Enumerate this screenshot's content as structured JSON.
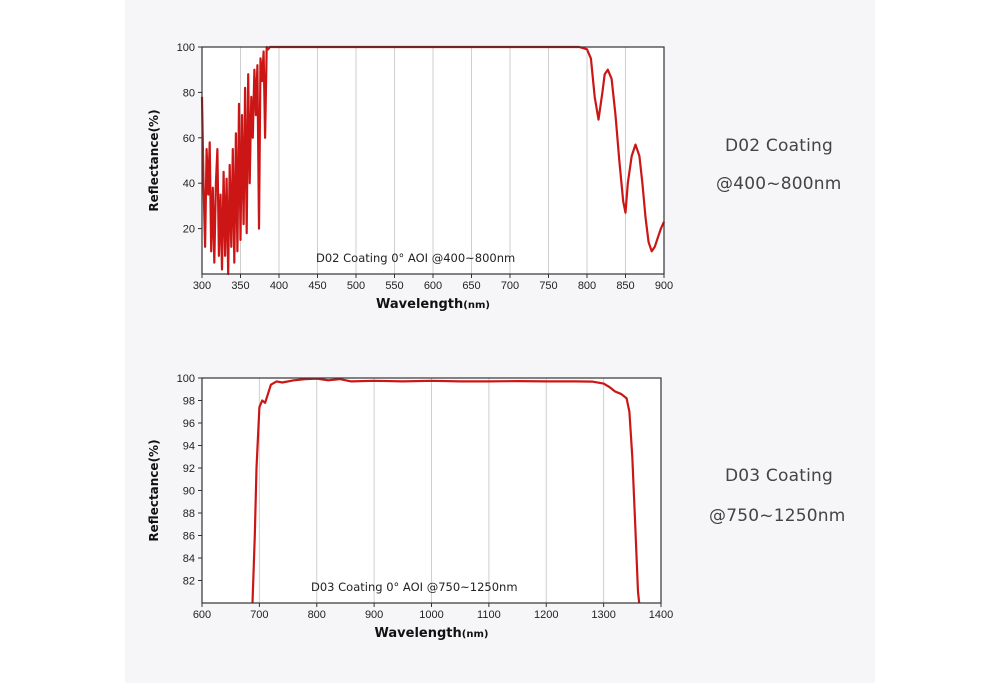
{
  "colors": {
    "series": "#cc1616",
    "axis": "#333333",
    "grid": "#cfcfcf",
    "panel": "#f6f6f8"
  },
  "side_labels": [
    {
      "title": "D02 Coating",
      "range": "@400~800nm"
    },
    {
      "title": "D03 Coating",
      "range": "@750~1250nm"
    }
  ],
  "chart_data": [
    {
      "type": "line",
      "xlabel": "Wavelength",
      "xlabel_unit": "(nm)",
      "ylabel": "Reflectance(%)",
      "annotation": "D02 Coating  0°  AOI @400~800nm",
      "xlim": [
        300,
        900
      ],
      "ylim": [
        0,
        100
      ],
      "xticks": [
        300,
        350,
        400,
        450,
        500,
        550,
        600,
        650,
        700,
        750,
        800,
        850,
        900
      ],
      "yticks": [
        20,
        40,
        60,
        80,
        100
      ],
      "grid": true,
      "series": [
        {
          "x": [
            300,
            302,
            304,
            306,
            308,
            310,
            312,
            314,
            316,
            318,
            320,
            322,
            324,
            326,
            328,
            330,
            332,
            334,
            336,
            338,
            340,
            342,
            344,
            346,
            348,
            350,
            352,
            354,
            356,
            358,
            360,
            362,
            364,
            366,
            368,
            370,
            372,
            374,
            376,
            378,
            380,
            382,
            384,
            386,
            388,
            390,
            395,
            400,
            450,
            500,
            550,
            600,
            650,
            700,
            750,
            790,
            800,
            805,
            810,
            815,
            820,
            823,
            827,
            832,
            837,
            842,
            847,
            850,
            853,
            858,
            863,
            868,
            872,
            876,
            880,
            884,
            888,
            892,
            896,
            900
          ],
          "y": [
            78,
            40,
            12,
            55,
            35,
            58,
            10,
            38,
            5,
            40,
            55,
            8,
            35,
            2,
            45,
            8,
            42,
            0,
            48,
            12,
            55,
            5,
            62,
            10,
            75,
            15,
            70,
            22,
            82,
            18,
            88,
            40,
            78,
            60,
            90,
            70,
            92,
            20,
            95,
            85,
            98,
            60,
            100,
            99,
            100,
            100,
            100,
            100,
            100,
            100,
            100,
            100,
            100,
            100,
            100,
            100,
            99,
            95,
            78,
            68,
            80,
            88,
            90,
            86,
            70,
            50,
            32,
            27,
            40,
            52,
            57,
            52,
            40,
            25,
            14,
            10,
            12,
            16,
            20,
            23
          ]
        }
      ]
    },
    {
      "type": "line",
      "xlabel": "Wavelength",
      "xlabel_unit": "(nm)",
      "ylabel": "Reflectance(%)",
      "annotation": "D03 Coating  0°  AOI @750~1250nm",
      "xlim": [
        600,
        1400
      ],
      "ylim": [
        80,
        100
      ],
      "xticks": [
        600,
        700,
        800,
        900,
        1000,
        1100,
        1200,
        1300,
        1400
      ],
      "yticks": [
        82,
        84,
        86,
        88,
        90,
        92,
        94,
        96,
        98,
        100
      ],
      "grid": true,
      "series": [
        {
          "x": [
            688,
            692,
            695,
            700,
            705,
            710,
            715,
            720,
            730,
            740,
            760,
            780,
            800,
            820,
            840,
            860,
            900,
            950,
            1000,
            1050,
            1100,
            1150,
            1200,
            1250,
            1280,
            1300,
            1310,
            1320,
            1330,
            1340,
            1345,
            1350,
            1355,
            1360,
            1362
          ],
          "y": [
            80,
            86,
            92,
            97.4,
            98,
            97.8,
            98.6,
            99.4,
            99.7,
            99.6,
            99.8,
            99.9,
            99.95,
            99.8,
            99.9,
            99.7,
            99.75,
            99.7,
            99.75,
            99.7,
            99.7,
            99.72,
            99.7,
            99.7,
            99.68,
            99.5,
            99.2,
            98.8,
            98.6,
            98.2,
            97,
            93,
            87,
            81,
            80
          ]
        }
      ]
    }
  ]
}
